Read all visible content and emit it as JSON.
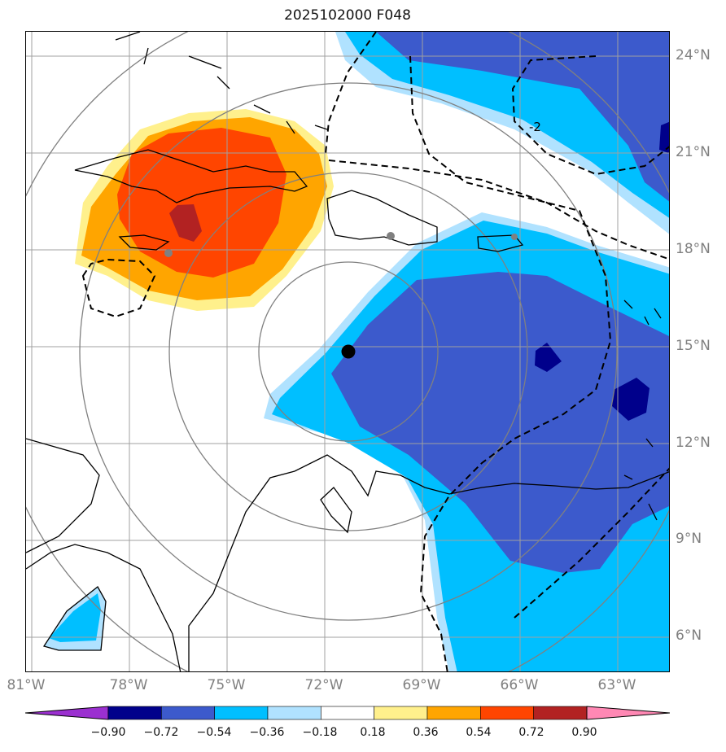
{
  "title": "2025102000 F048",
  "lat_labels": [
    "24°N",
    "21°N",
    "18°N",
    "15°N",
    "12°N",
    "9°N",
    "6°N"
  ],
  "lon_labels": [
    "81°W",
    "78°W",
    "75°W",
    "72°W",
    "69°W",
    "66°W",
    "63°W"
  ],
  "colorbar_ticks": [
    "−0.90",
    "−0.72",
    "−0.54",
    "−0.36",
    "−0.18",
    "0.18",
    "0.36",
    "0.54",
    "0.72",
    "0.90"
  ],
  "colorbar_colors": [
    "#9b30d0",
    "#00008b",
    "#3c5acc",
    "#00bfff",
    "#b0e2ff",
    "#ffffff",
    "#fff08c",
    "#ffa500",
    "#ff4500",
    "#b22222",
    "#ff88b4"
  ],
  "contour_label": "-2",
  "colors": {
    "deep_red": "#b22222",
    "red_orange": "#ff4500",
    "orange": "#ffa500",
    "light_yellow": "#fff08c",
    "light_blue": "#b0e2ff",
    "sky_blue": "#00bfff",
    "royal_blue": "#3c5acc",
    "navy": "#00008b",
    "gridline": "#a0a0a0",
    "range_ring": "#808080"
  }
}
